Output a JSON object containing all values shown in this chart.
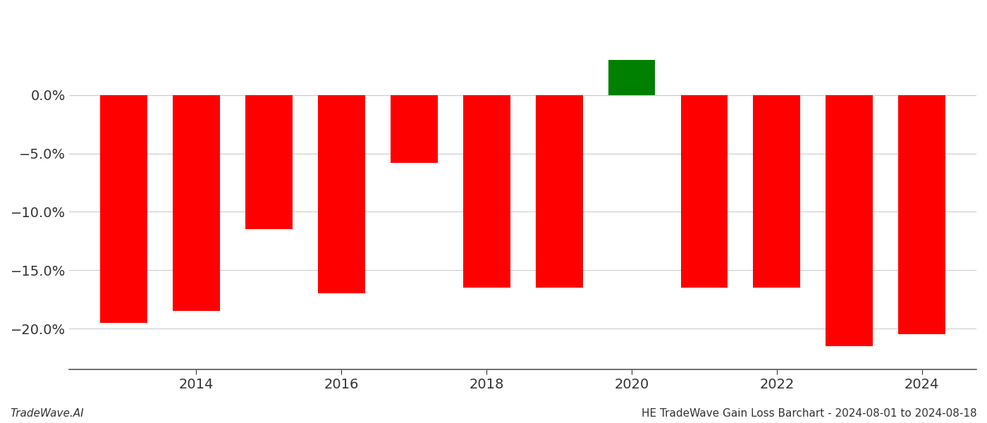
{
  "years": [
    2013,
    2014,
    2015,
    2016,
    2017,
    2018,
    2019,
    2020,
    2021,
    2022,
    2023,
    2024
  ],
  "values": [
    -0.195,
    -0.185,
    -0.115,
    -0.17,
    -0.058,
    -0.165,
    -0.165,
    0.03,
    -0.165,
    -0.165,
    -0.215,
    -0.205
  ],
  "colors": [
    "#FF0000",
    "#FF0000",
    "#FF0000",
    "#FF0000",
    "#FF0000",
    "#FF0000",
    "#FF0000",
    "#008000",
    "#FF0000",
    "#FF0000",
    "#FF0000",
    "#FF0000"
  ],
  "ylim": [
    -0.235,
    0.065
  ],
  "yticks": [
    -0.2,
    -0.15,
    -0.1,
    -0.05,
    0.0
  ],
  "xtick_labels": [
    "2014",
    "2016",
    "2018",
    "2020",
    "2022",
    "2024"
  ],
  "xtick_positions": [
    2014,
    2016,
    2018,
    2020,
    2022,
    2024
  ],
  "footer_left": "TradeWave.AI",
  "footer_right": "HE TradeWave Gain Loss Barchart - 2024-08-01 to 2024-08-18",
  "bar_width": 0.65,
  "background_color": "#ffffff",
  "grid_color": "#cccccc",
  "tick_fontsize": 14,
  "footer_fontsize": 11
}
